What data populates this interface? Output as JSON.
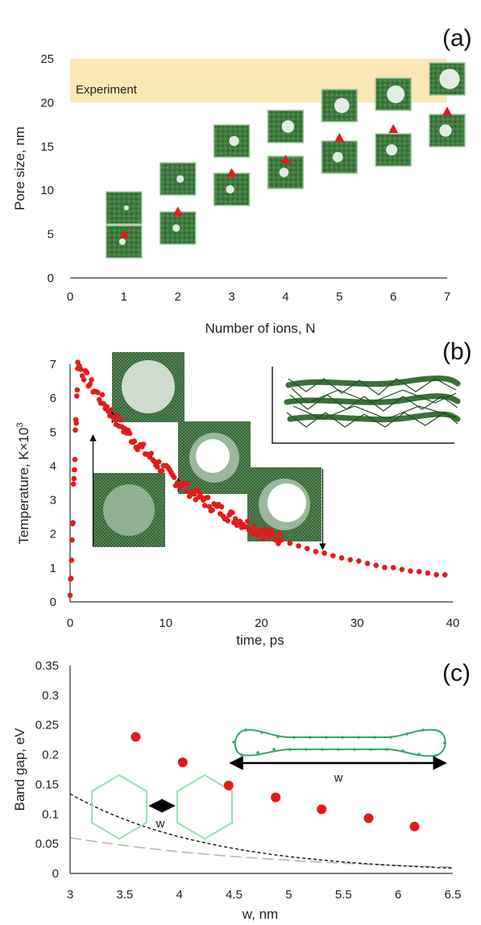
{
  "chart_data": [
    {
      "panel": "(a)",
      "type": "scatter",
      "xlabel": "Number of ions, N",
      "ylabel": "Pore size, nm",
      "xlim": [
        0,
        7
      ],
      "ylim": [
        0,
        25
      ],
      "xticks": [
        0,
        1,
        2,
        3,
        4,
        5,
        6,
        7
      ],
      "yticks": [
        0,
        5,
        10,
        15,
        20,
        25
      ],
      "band": {
        "label": "Experiment",
        "range": [
          20,
          25
        ],
        "color": "#fbe7b6"
      },
      "marker_color": "#e21b1b",
      "x": [
        1,
        2,
        3,
        4,
        5,
        6,
        7
      ],
      "y": [
        5,
        7.6,
        12,
        13.5,
        16,
        17,
        19
      ]
    },
    {
      "panel": "(b)",
      "type": "scatter",
      "xlabel": "time, ps",
      "ylabel": "Temperature, K×10",
      "ylabel_sup": "3",
      "xlim": [
        0,
        40
      ],
      "ylim": [
        0,
        7
      ],
      "xticks": [
        0,
        10,
        20,
        30,
        40
      ],
      "yticks": [
        0,
        1,
        2,
        3,
        4,
        5,
        6,
        7
      ],
      "marker_color": "#e21b1b",
      "peak": {
        "x": 0.8,
        "y": 6.9
      },
      "decay": {
        "amplitude": 6.7,
        "tau_ps": 14.5
      },
      "snapshot_times": [
        2.4,
        4.4,
        11.3,
        26.4
      ]
    },
    {
      "panel": "(c)",
      "type": "scatter",
      "xlabel": "w, nm",
      "ylabel": "Band gap, eV",
      "xlim": [
        3,
        6.5
      ],
      "ylim": [
        0,
        0.35
      ],
      "xticks": [
        3,
        3.5,
        4,
        4.5,
        5,
        5.5,
        6,
        6.5
      ],
      "yticks": [
        0,
        0.05,
        0.1,
        0.15,
        0.2,
        0.25,
        0.3,
        0.35
      ],
      "marker_color": "#e21b1b",
      "x": [
        3.6,
        4.03,
        4.45,
        4.88,
        5.3,
        5.73,
        6.15
      ],
      "y": [
        0.23,
        0.187,
        0.148,
        0.128,
        0.108,
        0.093,
        0.079
      ],
      "fit_black": {
        "A": 1.37,
        "k": 0.775,
        "style": "dashed"
      },
      "fit_gray": {
        "A": 0.27,
        "k": 0.5,
        "style": "dashed"
      },
      "inset_label_1": "w",
      "inset_label_2": "w"
    }
  ]
}
